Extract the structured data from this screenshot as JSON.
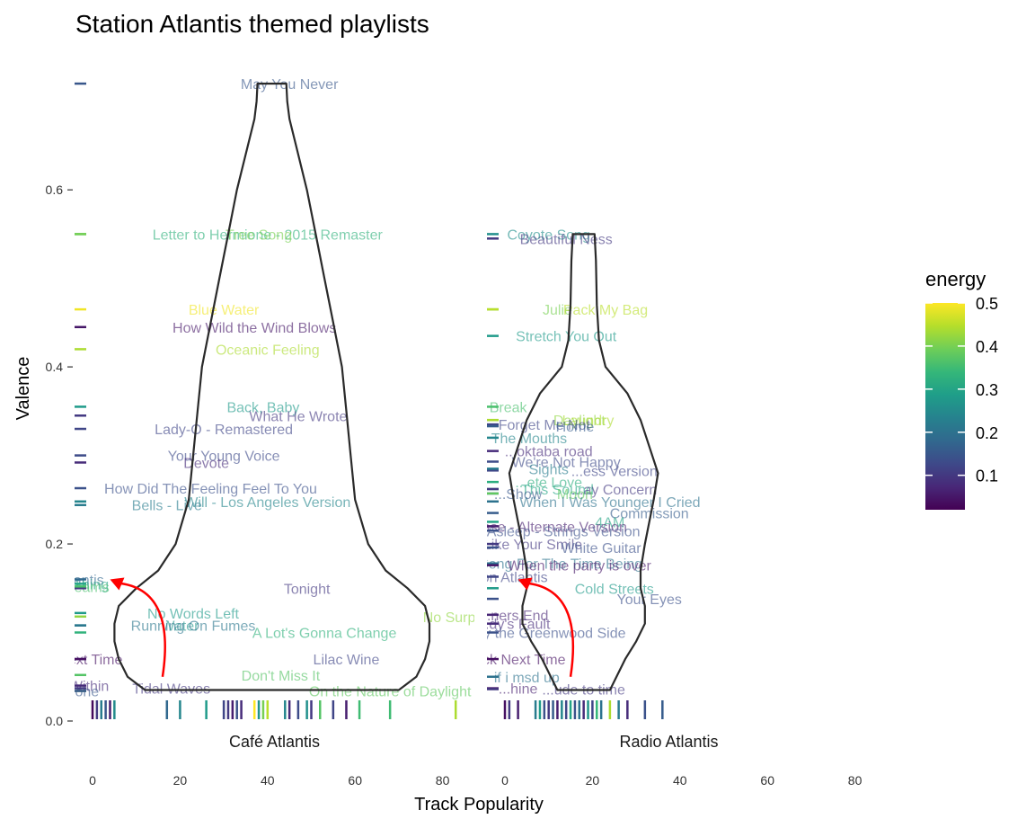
{
  "chart_data": {
    "type": "violin",
    "title": "Station Atlantis themed playlists",
    "xlabel": "Track Popularity",
    "ylabel": "Valence",
    "x_ticks": [
      0,
      20,
      40,
      60,
      80
    ],
    "y_ticks": [
      0.0,
      0.2,
      0.4,
      0.6
    ],
    "y_tick_labels": [
      "0.0",
      "0.2",
      "0.4",
      "0.6"
    ],
    "xlim": [
      -2,
      88
    ],
    "ylim": [
      0,
      0.72
    ],
    "legend": {
      "title": "energy",
      "position": "right",
      "ticks": [
        0.5,
        0.4,
        0.3,
        0.2,
        0.1
      ],
      "tick_labels": [
        "0.5",
        "0.4",
        "0.3",
        "0.2",
        "0.1"
      ],
      "range": [
        0.02,
        0.5
      ],
      "colormap": "viridis"
    },
    "colors": {
      "violin_stroke": "#2a2a2a",
      "arrow": "#ff0000",
      "viridis": [
        "#440154",
        "#482878",
        "#3e4989",
        "#31688e",
        "#26828e",
        "#1f9e89",
        "#35b779",
        "#6ece58",
        "#b5de2b",
        "#fde725"
      ]
    },
    "facets": [
      {
        "name": "Café Atlantis",
        "violin": {
          "center": 41,
          "y_min": 0.035,
          "y_max": 0.72,
          "profile": [
            [
              0.035,
              29
            ],
            [
              0.05,
              33
            ],
            [
              0.07,
              35
            ],
            [
              0.09,
              36
            ],
            [
              0.11,
              36
            ],
            [
              0.13,
              35
            ],
            [
              0.15,
              31
            ],
            [
              0.17,
              26
            ],
            [
              0.2,
              22
            ],
            [
              0.25,
              19
            ],
            [
              0.3,
              18
            ],
            [
              0.35,
              17
            ],
            [
              0.4,
              16
            ],
            [
              0.45,
              14
            ],
            [
              0.5,
              12
            ],
            [
              0.55,
              10
            ],
            [
              0.6,
              8
            ],
            [
              0.65,
              5.5
            ],
            [
              0.68,
              4
            ],
            [
              0.7,
              3.5
            ],
            [
              0.72,
              3.3
            ]
          ]
        },
        "arrow": {
          "from": [
            16,
            0.05
          ],
          "to": [
            4,
            0.16
          ]
        },
        "tracks": [
          {
            "label": "May You Never",
            "x": 45,
            "y": 0.72,
            "energy": 0.15
          },
          {
            "label": "Letter to Hermione - 2015 Remaster",
            "x": 40,
            "y": 0.55,
            "energy": 0.33
          },
          {
            "label": "Tree Song",
            "x": 38,
            "y": 0.55,
            "energy": 0.4
          },
          {
            "label": "Blue Water",
            "x": 30,
            "y": 0.465,
            "energy": 0.49
          },
          {
            "label": "How Wild the Wind Blows",
            "x": 37,
            "y": 0.445,
            "energy": 0.05
          },
          {
            "label": "Oceanic Feeling",
            "x": 40,
            "y": 0.42,
            "energy": 0.44
          },
          {
            "label": "Back, Baby",
            "x": 39,
            "y": 0.355,
            "energy": 0.28
          },
          {
            "label": "What He Wrote",
            "x": 47,
            "y": 0.345,
            "energy": 0.1
          },
          {
            "label": "Lady-O - Remastered",
            "x": 30,
            "y": 0.33,
            "energy": 0.12
          },
          {
            "label": "Your Young Voice",
            "x": 30,
            "y": 0.3,
            "energy": 0.13
          },
          {
            "label": "Devote",
            "x": 26,
            "y": 0.292,
            "energy": 0.08
          },
          {
            "label": "How Did The Feeling Feel To You",
            "x": 27,
            "y": 0.263,
            "energy": 0.14
          },
          {
            "label": "Will - Los Angeles Version",
            "x": 40,
            "y": 0.248,
            "energy": 0.24
          },
          {
            "label": "Bells - Live",
            "x": 17,
            "y": 0.244,
            "energy": 0.22
          },
          {
            "label": "Tonight",
            "x": 49,
            "y": 0.15,
            "energy": 0.1
          },
          {
            "label": "No Words Left",
            "x": 23,
            "y": 0.122,
            "energy": 0.28
          },
          {
            "label": "Water",
            "x": 20,
            "y": 0.108,
            "energy": 0.27
          },
          {
            "label": "Running On Fumes",
            "x": 23,
            "y": 0.108,
            "energy": 0.21
          },
          {
            "label": "A Lot's Gonna Change",
            "x": 53,
            "y": 0.1,
            "energy": 0.33
          },
          {
            "label": "No Surprises",
            "x": 85,
            "y": 0.118,
            "energy": 0.42
          },
          {
            "label": "Lilac Wine",
            "x": 58,
            "y": 0.07,
            "energy": 0.12
          },
          {
            "label": "Don't Miss It",
            "x": 43,
            "y": 0.052,
            "energy": 0.37
          },
          {
            "label": "On the Nature of Daylight",
            "x": 68,
            "y": 0.034,
            "energy": 0.38
          },
          {
            "label": "Tidal Waves",
            "x": 18,
            "y": 0.037,
            "energy": 0.1
          },
          {
            "label": "...stion Atlantis",
            "x": -8,
            "y": 0.16,
            "energy": 0.18
          },
          {
            "label": "...ng Thing",
            "x": -4,
            "y": 0.155,
            "energy": 0.3
          },
          {
            "label": "...dreams",
            "x": -3,
            "y": 0.152,
            "energy": 0.36
          },
          {
            "label": "...ck Next Time",
            "x": -4,
            "y": 0.07,
            "energy": 0.04
          },
          {
            "label": "...m Within",
            "x": -4,
            "y": 0.04,
            "energy": 0.08
          },
          {
            "label": "...lone",
            "x": -3,
            "y": 0.034,
            "energy": 0.15
          }
        ],
        "rug": [
          {
            "x": 0,
            "energy": 0.03
          },
          {
            "x": 1,
            "energy": 0.1
          },
          {
            "x": 2,
            "energy": 0.22
          },
          {
            "x": 3,
            "energy": 0.15
          },
          {
            "x": 4,
            "energy": 0.06
          },
          {
            "x": 5,
            "energy": 0.25
          },
          {
            "x": 17,
            "energy": 0.18
          },
          {
            "x": 20,
            "energy": 0.24
          },
          {
            "x": 26,
            "energy": 0.28
          },
          {
            "x": 30,
            "energy": 0.12
          },
          {
            "x": 31,
            "energy": 0.1
          },
          {
            "x": 32,
            "energy": 0.06
          },
          {
            "x": 33,
            "energy": 0.14
          },
          {
            "x": 34,
            "energy": 0.08
          },
          {
            "x": 37,
            "energy": 0.5
          },
          {
            "x": 38,
            "energy": 0.27
          },
          {
            "x": 39,
            "energy": 0.4
          },
          {
            "x": 40,
            "energy": 0.45
          },
          {
            "x": 44,
            "energy": 0.24
          },
          {
            "x": 45,
            "energy": 0.08
          },
          {
            "x": 47,
            "energy": 0.13
          },
          {
            "x": 49,
            "energy": 0.26
          },
          {
            "x": 50,
            "energy": 0.1
          },
          {
            "x": 52,
            "energy": 0.37
          },
          {
            "x": 55,
            "energy": 0.12
          },
          {
            "x": 58,
            "energy": 0.06
          },
          {
            "x": 61,
            "energy": 0.35
          },
          {
            "x": 68,
            "energy": 0.35
          },
          {
            "x": 83,
            "energy": 0.44
          }
        ]
      },
      {
        "name": "Radio Atlantis",
        "violin": {
          "center": 18,
          "y_min": 0.035,
          "y_max": 0.55,
          "profile": [
            [
              0.035,
              6
            ],
            [
              0.05,
              7.5
            ],
            [
              0.07,
              9.5
            ],
            [
              0.09,
              12
            ],
            [
              0.11,
              14
            ],
            [
              0.13,
              14
            ],
            [
              0.15,
              13
            ],
            [
              0.17,
              13
            ],
            [
              0.2,
              14
            ],
            [
              0.25,
              16
            ],
            [
              0.28,
              17
            ],
            [
              0.31,
              15
            ],
            [
              0.34,
              13
            ],
            [
              0.37,
              10
            ],
            [
              0.4,
              5
            ],
            [
              0.43,
              3.5
            ],
            [
              0.47,
              3
            ],
            [
              0.52,
              2.8
            ],
            [
              0.55,
              2.5
            ]
          ]
        },
        "arrow": {
          "from": [
            15,
            0.05
          ],
          "to": [
            3,
            0.16
          ]
        },
        "tracks": [
          {
            "label": "Coyote Song",
            "x": 10,
            "y": 0.55,
            "energy": 0.26
          },
          {
            "label": "Beautiful Ness",
            "x": 14,
            "y": 0.545,
            "energy": 0.1
          },
          {
            "label": "Julie",
            "x": 12,
            "y": 0.465,
            "energy": 0.4
          },
          {
            "label": "Pack My Bag",
            "x": 23,
            "y": 0.465,
            "energy": 0.45
          },
          {
            "label": "Stretch You Out",
            "x": 14,
            "y": 0.435,
            "energy": 0.28
          },
          {
            "label": "...g Break",
            "x": -2,
            "y": 0.355,
            "energy": 0.36
          },
          {
            "label": "Daylight",
            "x": 17,
            "y": 0.34,
            "energy": 0.42
          },
          {
            "label": "Laundry",
            "x": 19,
            "y": 0.34,
            "energy": 0.44
          },
          {
            "label": "Forget Me Not",
            "x": 9,
            "y": 0.335,
            "energy": 0.12
          },
          {
            "label": "Home",
            "x": 16,
            "y": 0.333,
            "energy": 0.16
          },
          {
            "label": "...as The Mouths",
            "x": 2,
            "y": 0.32,
            "energy": 0.24
          },
          {
            "label": "...oktaba road",
            "x": 10,
            "y": 0.305,
            "energy": 0.08
          },
          {
            "label": "We're Not Happy",
            "x": 14,
            "y": 0.293,
            "energy": 0.13
          },
          {
            "label": "...ess Version",
            "x": 25,
            "y": 0.283,
            "energy": 0.12
          },
          {
            "label": "Sights",
            "x": 10,
            "y": 0.285,
            "energy": 0.22
          },
          {
            "label": "...ete Love",
            "x": 10,
            "y": 0.27,
            "energy": 0.32
          },
          {
            "label": "This Sound",
            "x": 12,
            "y": 0.262,
            "energy": 0.3
          },
          {
            "label": "...ay Concern",
            "x": 25,
            "y": 0.262,
            "energy": 0.1
          },
          {
            "label": "...Show",
            "x": 3,
            "y": 0.257,
            "energy": 0.15
          },
          {
            "label": "Moon",
            "x": 16,
            "y": 0.257,
            "energy": 0.38
          },
          {
            "label": "When I Was Younger I Cried",
            "x": 24,
            "y": 0.248,
            "energy": 0.2
          },
          {
            "label": "Commission",
            "x": 33,
            "y": 0.235,
            "energy": 0.16
          },
          {
            "label": "4AM",
            "x": 24,
            "y": 0.225,
            "energy": 0.3
          },
          {
            "label": "...ase - Alternate Version",
            "x": 10,
            "y": 0.22,
            "energy": 0.06
          },
          {
            "label": "...all Asleep - Strings Version",
            "x": 10,
            "y": 0.215,
            "energy": 0.14
          },
          {
            "label": "...Like Your Smile",
            "x": 5,
            "y": 0.2,
            "energy": 0.1
          },
          {
            "label": "White Guitar",
            "x": 22,
            "y": 0.196,
            "energy": 0.14
          },
          {
            "label": "...e Song For The Time Being",
            "x": 10,
            "y": 0.178,
            "energy": 0.2
          },
          {
            "label": "When the party is over",
            "x": 17,
            "y": 0.176,
            "energy": 0.05
          },
          {
            "label": "...tion Atlantis",
            "x": 0,
            "y": 0.163,
            "energy": 0.12
          },
          {
            "label": "Cold Streets",
            "x": 25,
            "y": 0.15,
            "energy": 0.28
          },
          {
            "label": "Your Eyes",
            "x": 33,
            "y": 0.138,
            "energy": 0.14
          },
          {
            "label": "...ners End",
            "x": 2,
            "y": 0.12,
            "energy": 0.07
          },
          {
            "label": "...dy's Fault",
            "x": 2,
            "y": 0.11,
            "energy": 0.08
          },
          {
            "label": "...y the Greenwood Side",
            "x": 10,
            "y": 0.1,
            "energy": 0.14
          },
          {
            "label": "...ck Next Time",
            "x": 3,
            "y": 0.07,
            "energy": 0.04
          },
          {
            "label": "if i msd up",
            "x": 5,
            "y": 0.05,
            "energy": 0.2
          },
          {
            "label": "...hine",
            "x": 3,
            "y": 0.037,
            "energy": 0.06
          },
          {
            "label": "...ude to time",
            "x": 18,
            "y": 0.036,
            "energy": 0.1
          }
        ],
        "rug": [
          {
            "x": 0,
            "energy": 0.04
          },
          {
            "x": 1,
            "energy": 0.1
          },
          {
            "x": 3,
            "energy": 0.06
          },
          {
            "x": 7,
            "energy": 0.22
          },
          {
            "x": 8,
            "energy": 0.28
          },
          {
            "x": 9,
            "energy": 0.14
          },
          {
            "x": 10,
            "energy": 0.1
          },
          {
            "x": 11,
            "energy": 0.16
          },
          {
            "x": 12,
            "energy": 0.06
          },
          {
            "x": 13,
            "energy": 0.24
          },
          {
            "x": 14,
            "energy": 0.12
          },
          {
            "x": 15,
            "energy": 0.3
          },
          {
            "x": 16,
            "energy": 0.14
          },
          {
            "x": 17,
            "energy": 0.2
          },
          {
            "x": 18,
            "energy": 0.08
          },
          {
            "x": 19,
            "energy": 0.27
          },
          {
            "x": 20,
            "energy": 0.12
          },
          {
            "x": 21,
            "energy": 0.34
          },
          {
            "x": 22,
            "energy": 0.2
          },
          {
            "x": 24,
            "energy": 0.44
          },
          {
            "x": 26,
            "energy": 0.22
          },
          {
            "x": 28,
            "energy": 0.08
          },
          {
            "x": 32,
            "energy": 0.14
          },
          {
            "x": 36,
            "energy": 0.16
          }
        ]
      }
    ]
  }
}
